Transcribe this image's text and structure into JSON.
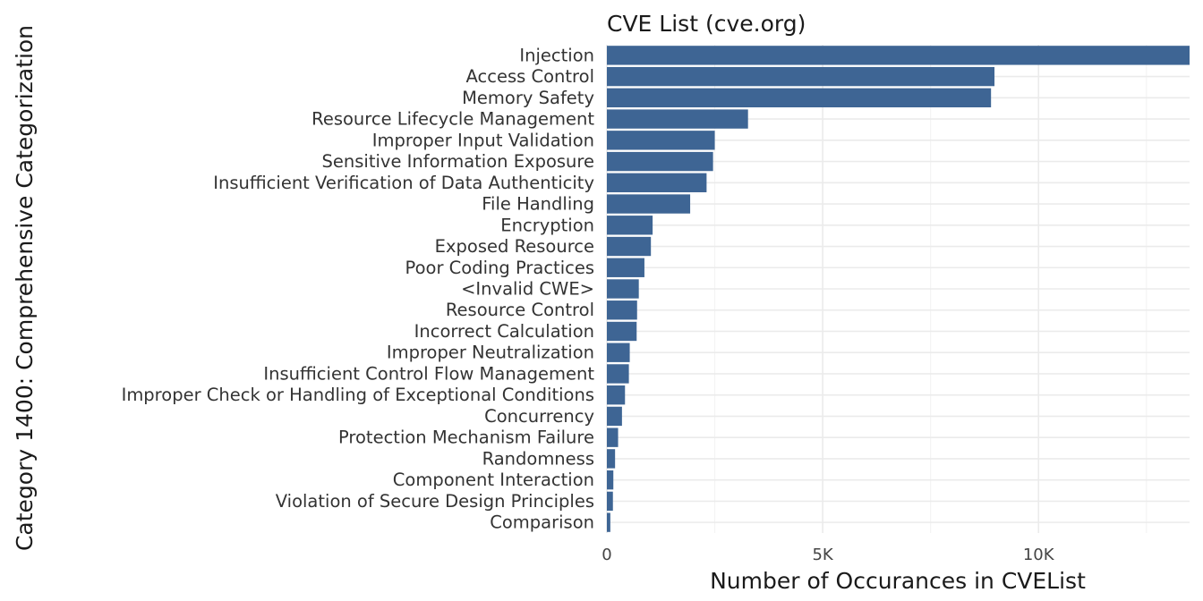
{
  "chart_data": {
    "type": "bar",
    "orientation": "horizontal",
    "title": "CVE List (cve.org)",
    "xlabel": "Number of Occurances in CVEList",
    "ylabel": "Category 1400: Comprehensive Categorization",
    "xlim": [
      0,
      13500
    ],
    "x_ticks": [
      0,
      5000,
      10000
    ],
    "x_tick_labels": [
      "0",
      "5K",
      "10K"
    ],
    "grid": true,
    "bar_color": "#3e6594",
    "categories": [
      "Injection",
      "Access Control",
      "Memory Safety",
      "Resource Lifecycle Management",
      "Improper Input Validation",
      "Sensitive Information Exposure",
      "Insufficient Verification of Data Authenticity",
      "File Handling",
      "Encryption",
      "Exposed Resource",
      "Poor Coding Practices",
      "<Invalid CWE>",
      "Resource Control",
      "Incorrect Calculation",
      "Improper Neutralization",
      "Insufficient Control Flow Management",
      "Improper Check or Handling of Exceptional Conditions",
      "Concurrency",
      "Protection Mechanism Failure",
      "Randomness",
      "Component Interaction",
      "Violation of Secure Design Principles",
      "Comparison"
    ],
    "values": [
      13500,
      8980,
      8900,
      3270,
      2500,
      2460,
      2310,
      1930,
      1060,
      1020,
      870,
      740,
      700,
      690,
      530,
      510,
      420,
      350,
      260,
      190,
      150,
      140,
      80
    ]
  }
}
